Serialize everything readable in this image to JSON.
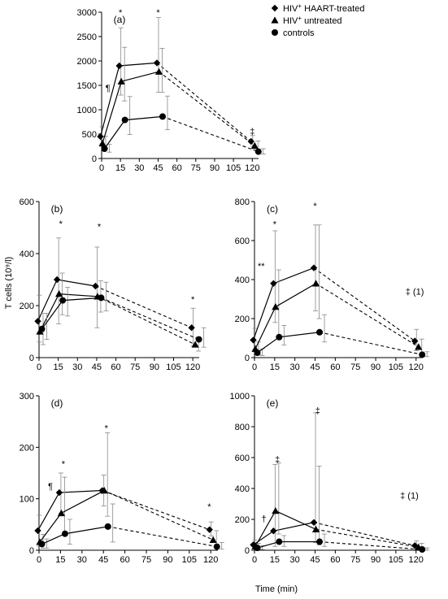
{
  "figure": {
    "y_axis_title": "T cells (10⁹/l)",
    "x_axis_title": "Time (min)"
  },
  "legend": [
    {
      "marker": "diamond",
      "pre": "HIV",
      "sup": "+",
      "post": " HAART-treated"
    },
    {
      "marker": "triangle",
      "pre": "HIV",
      "sup": "+",
      "post": " untreated"
    },
    {
      "marker": "circle",
      "pre": "controls",
      "sup": "",
      "post": ""
    }
  ],
  "chart_data": [
    {
      "id": "a",
      "type": "line",
      "label": "(a)",
      "x": [
        0,
        15,
        45,
        120
      ],
      "xlim": [
        0,
        125
      ],
      "xticks": [
        "0",
        "15",
        "30",
        "45",
        "60",
        "75",
        "90",
        "105",
        "120"
      ],
      "ylim": [
        0,
        3000
      ],
      "yticks": [
        "0",
        "500",
        "1000",
        "1500",
        "2000",
        "2500",
        "3000"
      ],
      "series": [
        {
          "marker": "diamond",
          "values": [
            450,
            1900,
            1960,
            350
          ],
          "err_up": [
            200,
            780,
            930,
            120
          ],
          "err_down": [
            150,
            600,
            600,
            100
          ]
        },
        {
          "marker": "triangle",
          "values": [
            310,
            1580,
            1780,
            260
          ],
          "err_up": [
            150,
            700,
            480,
            100
          ],
          "err_down": [
            100,
            400,
            420,
            80
          ]
        },
        {
          "marker": "circle",
          "values": [
            200,
            790,
            860,
            140
          ],
          "err_up": [
            90,
            480,
            420,
            60
          ],
          "err_down": [
            70,
            300,
            270,
            50
          ]
        }
      ],
      "annotations": [
        {
          "text": "*",
          "x": 15,
          "y": 3000
        },
        {
          "text": "*",
          "x": 45,
          "y": 3000
        },
        {
          "text": "‡",
          "x": 120,
          "y": 560
        },
        {
          "text": "¶",
          "x": 5,
          "y": 1450
        }
      ]
    },
    {
      "id": "b",
      "type": "line",
      "label": "(b)",
      "x": [
        0,
        15,
        45,
        120
      ],
      "xlim": [
        0,
        125
      ],
      "xticks": [
        "0",
        "15",
        "30",
        "45",
        "60",
        "75",
        "90",
        "105",
        "120"
      ],
      "ylim": [
        0,
        600
      ],
      "yticks": [
        "0",
        "200",
        "400",
        "600"
      ],
      "series": [
        {
          "marker": "diamond",
          "values": [
            140,
            300,
            275,
            115
          ],
          "err_up": [
            100,
            160,
            150,
            75
          ],
          "err_down": [
            80,
            170,
            160,
            70
          ]
        },
        {
          "marker": "triangle",
          "values": [
            100,
            245,
            235,
            50
          ],
          "err_up": [
            70,
            80,
            60,
            30
          ],
          "err_down": [
            50,
            80,
            60,
            25
          ]
        },
        {
          "marker": "circle",
          "values": [
            110,
            220,
            230,
            70
          ],
          "err_up": [
            60,
            50,
            60,
            45
          ],
          "err_down": [
            40,
            60,
            50,
            30
          ]
        }
      ],
      "annotations": [
        {
          "text": "*",
          "x": 17,
          "y": 515
        },
        {
          "text": "*",
          "x": 47,
          "y": 505
        },
        {
          "text": "*",
          "x": 120,
          "y": 225
        }
      ]
    },
    {
      "id": "c",
      "type": "line",
      "label": "(c)",
      "x": [
        0,
        15,
        45,
        120
      ],
      "xlim": [
        0,
        125
      ],
      "xticks": [
        "0",
        "15",
        "30",
        "45",
        "60",
        "75",
        "90",
        "105",
        "120"
      ],
      "ylim": [
        0,
        800
      ],
      "yticks": [
        "0",
        "200",
        "400",
        "600",
        "800"
      ],
      "series": [
        {
          "marker": "diamond",
          "values": [
            90,
            380,
            460,
            85
          ],
          "err_up": [
            60,
            270,
            220,
            60
          ],
          "err_down": [
            60,
            200,
            220,
            50
          ]
        },
        {
          "marker": "triangle",
          "values": [
            45,
            260,
            380,
            55
          ],
          "err_up": [
            35,
            190,
            300,
            40
          ],
          "err_down": [
            30,
            150,
            180,
            35
          ]
        },
        {
          "marker": "circle",
          "values": [
            25,
            105,
            130,
            15
          ],
          "err_up": [
            20,
            60,
            90,
            15
          ],
          "err_down": [
            15,
            40,
            50,
            10
          ]
        }
      ],
      "annotations": [
        {
          "text": "*",
          "x": 15,
          "y": 685
        },
        {
          "text": "*",
          "x": 45,
          "y": 780
        },
        {
          "text": "**",
          "x": 5,
          "y": 470
        },
        {
          "text": "‡ (1)",
          "x": 119,
          "y": 340
        }
      ]
    },
    {
      "id": "d",
      "type": "line",
      "label": "(d)",
      "x": [
        0,
        15,
        45,
        120
      ],
      "xlim": [
        0,
        125
      ],
      "xticks": [
        "0",
        "15",
        "30",
        "45",
        "60",
        "75",
        "90",
        "105",
        "120"
      ],
      "ylim": [
        0,
        300
      ],
      "yticks": [
        "0",
        "100",
        "200",
        "300"
      ],
      "series": [
        {
          "marker": "diamond",
          "values": [
            38,
            112,
            116,
            40
          ],
          "err_up": [
            30,
            38,
            30,
            15
          ],
          "err_down": [
            30,
            40,
            30,
            12
          ]
        },
        {
          "marker": "triangle",
          "values": [
            16,
            72,
            116,
            20
          ],
          "err_up": [
            15,
            70,
            112,
            18
          ],
          "err_down": [
            12,
            40,
            50,
            15
          ]
        },
        {
          "marker": "circle",
          "values": [
            12,
            32,
            46,
            7
          ],
          "err_up": [
            10,
            28,
            44,
            8
          ],
          "err_down": [
            8,
            20,
            30,
            5
          ]
        }
      ],
      "annotations": [
        {
          "text": "*",
          "x": 17,
          "y": 168
        },
        {
          "text": "*",
          "x": 47,
          "y": 238
        },
        {
          "text": "*",
          "x": 119,
          "y": 85
        },
        {
          "text": "¶",
          "x": 8,
          "y": 125
        }
      ]
    },
    {
      "id": "e",
      "type": "line",
      "label": "(e)",
      "x": [
        0,
        15,
        45,
        120
      ],
      "xlim": [
        0,
        125
      ],
      "xticks": [
        "0",
        "15",
        "30",
        "45",
        "60",
        "75",
        "90",
        "105",
        "120"
      ],
      "ylim": [
        0,
        1000
      ],
      "yticks": [
        "0",
        "200",
        "400",
        "600",
        "800",
        "1000"
      ],
      "series": [
        {
          "marker": "diamond",
          "values": [
            35,
            125,
            180,
            30
          ],
          "err_up": [
            30,
            430,
            710,
            30
          ],
          "err_down": [
            25,
            100,
            130,
            25
          ]
        },
        {
          "marker": "triangle",
          "values": [
            25,
            255,
            135,
            20
          ],
          "err_up": [
            20,
            310,
            410,
            25
          ],
          "err_down": [
            20,
            150,
            100,
            15
          ]
        },
        {
          "marker": "circle",
          "values": [
            15,
            55,
            55,
            5
          ],
          "err_up": [
            15,
            40,
            50,
            10
          ],
          "err_down": [
            10,
            30,
            30,
            5
          ]
        }
      ],
      "annotations": [
        {
          "text": "‡",
          "x": 17,
          "y": 590
        },
        {
          "text": "‡",
          "x": 47,
          "y": 905
        },
        {
          "text": "†",
          "x": 7,
          "y": 205
        },
        {
          "text": "‡ (1)",
          "x": 115,
          "y": 355
        }
      ]
    }
  ]
}
